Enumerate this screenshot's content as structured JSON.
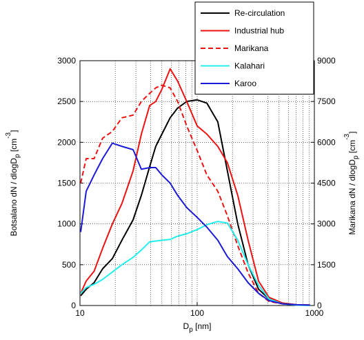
{
  "chart_data": {
    "type": "line",
    "xscale": "log",
    "x": [
      10.14,
      11.3,
      13.2,
      15.6,
      18.9,
      22.8,
      28.4,
      33.4,
      39.3,
      44.3,
      50.0,
      58.8,
      68.1,
      81.5,
      100,
      121,
      150,
      181,
      222,
      272,
      334,
      410,
      536,
      701,
      918
    ],
    "xlim": [
      10,
      1000
    ],
    "xticks": [
      10,
      100,
      1000
    ],
    "xminor": [
      20,
      30,
      40,
      50,
      60,
      70,
      80,
      90,
      200,
      300,
      400,
      500,
      600,
      700,
      800,
      900
    ],
    "ylim": [
      0,
      3000
    ],
    "yticks": [
      0,
      500,
      1000,
      1500,
      2000,
      2500,
      3000
    ],
    "y2lim": [
      0,
      9000
    ],
    "y2ticks": [
      0,
      1500,
      3000,
      4500,
      6000,
      7500,
      9000
    ],
    "grid": true,
    "legend": "upper right",
    "xlabel": {
      "base": "D",
      "sub": "p",
      "rest": " [nm]"
    },
    "ylabel": {
      "base": "Botsalano dN / dlogD",
      "sub": "p",
      "rest": " [cm",
      "sup": "-3",
      "end": "]"
    },
    "y2label": {
      "base": "Marikana dN / dlogD",
      "sub": "p",
      "rest": " [cm",
      "sup": "-3",
      "end": "]"
    },
    "series": [
      {
        "name": "Re-circulation",
        "color": "#000000",
        "linestyle": "solid",
        "values": [
          120,
          200,
          280,
          450,
          575,
          800,
          1050,
          1350,
          1700,
          1950,
          2100,
          2300,
          2420,
          2500,
          2520,
          2480,
          2250,
          1650,
          1000,
          500,
          200,
          80,
          30,
          10,
          5
        ]
      },
      {
        "name": "Industrial hub",
        "color": "#ee1111",
        "linestyle": "solid",
        "values": [
          150,
          300,
          420,
          700,
          1000,
          1250,
          1650,
          2100,
          2450,
          2500,
          2650,
          2900,
          2750,
          2500,
          2200,
          2100,
          1950,
          1750,
          1350,
          800,
          300,
          100,
          30,
          10,
          5
        ]
      },
      {
        "name": "Marikana",
        "color": "#ee1111",
        "linestyle": "dashed",
        "axis": "y2",
        "values": [
          4500,
          5400,
          5400,
          6150,
          6400,
          6900,
          7000,
          7500,
          7800,
          8000,
          8100,
          8000,
          7500,
          6600,
          5700,
          4800,
          4200,
          3300,
          2200,
          1200,
          450,
          150,
          60,
          20,
          5
        ]
      },
      {
        "name": "Kalahari",
        "color": "#22eeee",
        "linestyle": "solid",
        "values": [
          150,
          220,
          260,
          320,
          410,
          500,
          590,
          680,
          780,
          790,
          800,
          810,
          850,
          880,
          930,
          990,
          1030,
          1010,
          800,
          500,
          250,
          80,
          20,
          5,
          0
        ]
      },
      {
        "name": "Karoo",
        "color": "#1a1ad6",
        "linestyle": "solid",
        "values": [
          900,
          1400,
          1600,
          1800,
          1990,
          1950,
          1910,
          1670,
          1690,
          1690,
          1600,
          1500,
          1350,
          1200,
          1080,
          960,
          800,
          600,
          450,
          280,
          150,
          60,
          20,
          10,
          5
        ]
      }
    ]
  }
}
